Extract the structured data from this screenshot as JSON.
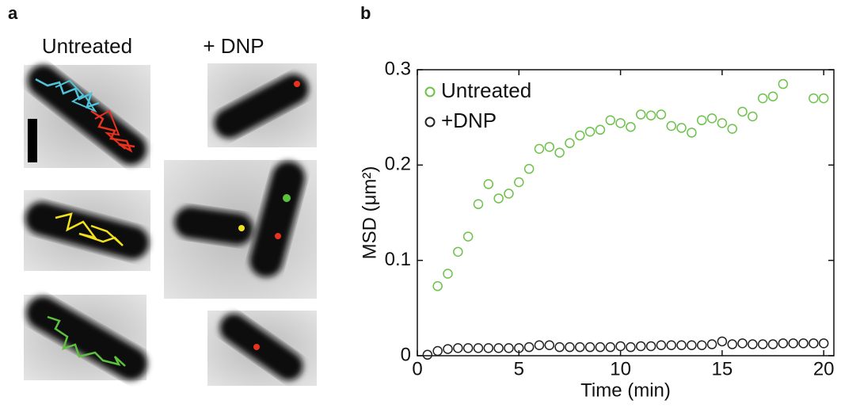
{
  "figure": {
    "panel_a_label": "a",
    "panel_b_label": "b",
    "untreated_label": "Untreated",
    "dnp_label": "+ DNP"
  },
  "chart_data": {
    "type": "scatter",
    "x_label": "Time (min)",
    "y_label": "MSD (μm²)",
    "xlim": [
      0,
      20.5
    ],
    "ylim": [
      0,
      0.3
    ],
    "xticks": [
      0,
      5,
      10,
      15,
      20
    ],
    "yticks": [
      0,
      0.1,
      0.2,
      0.3
    ],
    "legend": "upper-left",
    "series": [
      {
        "name": "Untreated",
        "color": "#6cc24a",
        "x": [
          1,
          1.5,
          2,
          2.5,
          3,
          3.5,
          4,
          4.5,
          5,
          5.5,
          6,
          6.5,
          7,
          7.5,
          8,
          8.5,
          9,
          9.5,
          10,
          10.5,
          11,
          11.5,
          12,
          12.5,
          13,
          13.5,
          14,
          14.5,
          15,
          15.5,
          16,
          16.5,
          17,
          17.5,
          18,
          19.5,
          20
        ],
        "values": [
          0.073,
          0.086,
          0.109,
          0.125,
          0.159,
          0.18,
          0.165,
          0.17,
          0.182,
          0.196,
          0.217,
          0.219,
          0.213,
          0.223,
          0.231,
          0.235,
          0.237,
          0.247,
          0.244,
          0.24,
          0.253,
          0.252,
          0.253,
          0.241,
          0.239,
          0.234,
          0.247,
          0.249,
          0.244,
          0.238,
          0.256,
          0.251,
          0.27,
          0.272,
          0.285,
          0.27,
          0.27
        ]
      },
      {
        "name": "+DNP",
        "color": "#222222",
        "x": [
          0.5,
          1,
          1.5,
          2,
          2.5,
          3,
          3.5,
          4,
          4.5,
          5,
          5.5,
          6,
          6.5,
          7,
          7.5,
          8,
          8.5,
          9,
          9.5,
          10,
          10.5,
          11,
          11.5,
          12,
          12.5,
          13,
          13.5,
          14,
          14.5,
          15,
          15.5,
          16,
          16.5,
          17,
          17.5,
          18,
          18.5,
          19,
          19.5,
          20
        ],
        "values": [
          0.001,
          0.005,
          0.007,
          0.008,
          0.008,
          0.008,
          0.008,
          0.008,
          0.008,
          0.008,
          0.009,
          0.011,
          0.011,
          0.009,
          0.009,
          0.009,
          0.009,
          0.009,
          0.009,
          0.01,
          0.009,
          0.01,
          0.01,
          0.011,
          0.011,
          0.011,
          0.011,
          0.011,
          0.012,
          0.015,
          0.012,
          0.013,
          0.012,
          0.012,
          0.012,
          0.013,
          0.013,
          0.013,
          0.013,
          0.013
        ]
      }
    ]
  }
}
